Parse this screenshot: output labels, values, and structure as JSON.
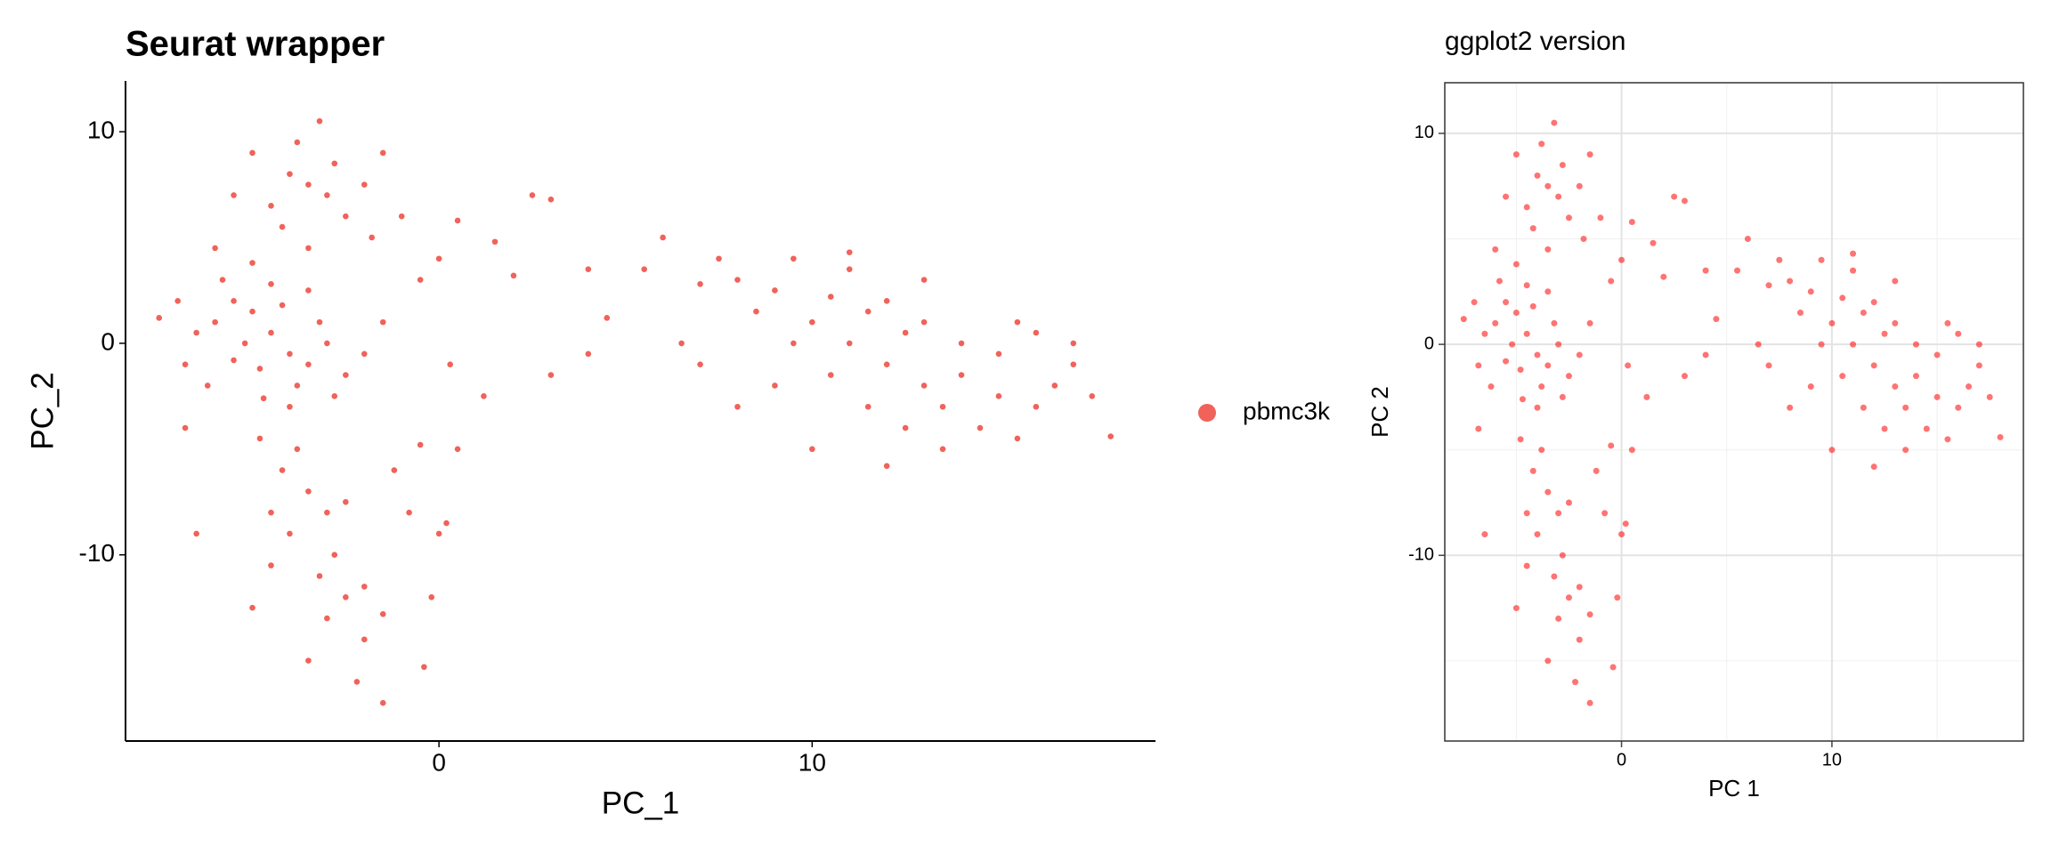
{
  "chart_data": [
    {
      "type": "scatter",
      "title": "Seurat wrapper",
      "x_label": "PC_1",
      "y_label": "PC_2",
      "xlim": [
        -8.4,
        19.2
      ],
      "ylim": [
        -18.8,
        12.4
      ],
      "xticks": [
        0,
        10
      ],
      "yticks": [
        -10,
        0,
        10
      ],
      "grid": false,
      "panel_border": false,
      "legend": "right",
      "opacity": 1,
      "x": [
        -6,
        -5.5,
        -5,
        -4.5,
        -5.2,
        -4,
        -3.5,
        -4.8,
        -6.5,
        -7,
        -5.8,
        -4.2,
        -3,
        -2.5,
        -3.8,
        -5.5,
        -6.8,
        -4.5,
        -3.2,
        -2.8,
        -7.5,
        -6.2,
        -4,
        -5,
        -6,
        -2,
        -1.5,
        -6.8,
        -3.5,
        -4.7,
        -3.5,
        -4,
        -3,
        -2.8,
        -4.5,
        -3.8,
        -2.5,
        -5,
        -3.2,
        -1.5,
        -2,
        -4.2,
        -1,
        -1.8,
        -5.5,
        -3.5,
        -3.8,
        -4.2,
        -3.5,
        -3,
        -4,
        -2.8,
        -3.2,
        -2.5,
        -3,
        -2,
        -3.5,
        -2.2,
        -1.5,
        -4.5,
        -2.5,
        -4.8,
        -2,
        -1.5,
        -5,
        -6.5,
        -4.5,
        -1.2,
        0,
        0.5,
        1.5,
        3,
        2.5,
        -0.5,
        0.3,
        0.5,
        -0.8,
        0,
        -0.2,
        1.2,
        3,
        4,
        4.5,
        4,
        2,
        -0.5,
        0.2,
        -0.4,
        5.5,
        6,
        7,
        7.5,
        8,
        8.5,
        9,
        9.5,
        10,
        10.5,
        11,
        11,
        11.5,
        12,
        12,
        12.5,
        13,
        13,
        13.5,
        14,
        14,
        14.5,
        15,
        15,
        15.5,
        16,
        16,
        16.5,
        17,
        17,
        17.5,
        18,
        12.5,
        10,
        11.5,
        13.5,
        9,
        8,
        6.5,
        7,
        10.5,
        12,
        15.5,
        13,
        11,
        9.5
      ],
      "series": [
        {
          "name": "pbmc3k",
          "color": "#f0625a",
          "values": [
            1,
            2,
            1.5,
            0.5,
            0,
            -0.5,
            -1,
            -1.2,
            0.5,
            2,
            3,
            1.8,
            0,
            -1.5,
            -2,
            -0.8,
            -1,
            2.8,
            1,
            -2.5,
            1.2,
            -2,
            -3,
            3.8,
            4.5,
            -0.5,
            1,
            -4,
            2.5,
            -2.6,
            7.5,
            8,
            7,
            8.5,
            6.5,
            9.5,
            6,
            9,
            10.5,
            9,
            7.5,
            5.5,
            6,
            5,
            7,
            4.5,
            -5,
            -6,
            -7,
            -8,
            -9,
            -10,
            -11,
            -12,
            -13,
            -14,
            -15,
            -16,
            -17,
            -8,
            -7.5,
            -4.5,
            -11.5,
            -12.8,
            -12.5,
            -9,
            -10.5,
            -6,
            4,
            5.8,
            4.8,
            6.8,
            7,
            3,
            -1,
            -5,
            -8,
            -9,
            -12,
            -2.5,
            -1.5,
            -0.5,
            1.2,
            3.5,
            3.2,
            -4.8,
            -8.5,
            -15.3,
            3.5,
            5,
            2.8,
            4,
            3,
            1.5,
            2.5,
            4,
            1,
            2.2,
            3.5,
            0,
            1.5,
            -1,
            2,
            0.5,
            -2,
            1,
            -3,
            0,
            -1.5,
            -4,
            -0.5,
            -2.5,
            1,
            -3,
            0.5,
            -2,
            -1,
            0,
            -2.5,
            -4.4,
            -4,
            -5,
            -3,
            -5,
            -2,
            -3,
            0,
            -1,
            -1.5,
            -5.8,
            -4.5,
            3,
            4.3,
            0
          ]
        }
      ]
    },
    {
      "type": "scatter",
      "title": "ggplot2 version",
      "x_label": "PC 1",
      "y_label": "PC 2",
      "xlim": [
        -8.4,
        19.1
      ],
      "ylim": [
        -18.8,
        12.4
      ],
      "xticks": [
        0,
        10
      ],
      "yticks": [
        -10,
        0,
        10
      ],
      "x_minor_ticks": [
        -5,
        5,
        15
      ],
      "y_minor_ticks": [
        -15,
        -5,
        5
      ],
      "grid": true,
      "panel_border": true,
      "opacity": 0.55,
      "color": "#ff0000",
      "x": [
        -6,
        -5.5,
        -5,
        -4.5,
        -5.2,
        -4,
        -3.5,
        -4.8,
        -6.5,
        -7,
        -5.8,
        -4.2,
        -3,
        -2.5,
        -3.8,
        -5.5,
        -6.8,
        -4.5,
        -3.2,
        -2.8,
        -7.5,
        -6.2,
        -4,
        -5,
        -6,
        -2,
        -1.5,
        -6.8,
        -3.5,
        -4.7,
        -3.5,
        -4,
        -3,
        -2.8,
        -4.5,
        -3.8,
        -2.5,
        -5,
        -3.2,
        -1.5,
        -2,
        -4.2,
        -1,
        -1.8,
        -5.5,
        -3.5,
        -3.8,
        -4.2,
        -3.5,
        -3,
        -4,
        -2.8,
        -3.2,
        -2.5,
        -3,
        -2,
        -3.5,
        -2.2,
        -1.5,
        -4.5,
        -2.5,
        -4.8,
        -2,
        -1.5,
        -5,
        -6.5,
        -4.5,
        -1.2,
        0,
        0.5,
        1.5,
        3,
        2.5,
        -0.5,
        0.3,
        0.5,
        -0.8,
        0,
        -0.2,
        1.2,
        3,
        4,
        4.5,
        4,
        2,
        -0.5,
        0.2,
        -0.4,
        5.5,
        6,
        7,
        7.5,
        8,
        8.5,
        9,
        9.5,
        10,
        10.5,
        11,
        11,
        11.5,
        12,
        12,
        12.5,
        13,
        13,
        13.5,
        14,
        14,
        14.5,
        15,
        15,
        15.5,
        16,
        16,
        16.5,
        17,
        17,
        17.5,
        18,
        12.5,
        10,
        11.5,
        13.5,
        9,
        8,
        6.5,
        7,
        10.5,
        12,
        15.5,
        13,
        11,
        9.5
      ],
      "values": [
        1,
        2,
        1.5,
        0.5,
        0,
        -0.5,
        -1,
        -1.2,
        0.5,
        2,
        3,
        1.8,
        0,
        -1.5,
        -2,
        -0.8,
        -1,
        2.8,
        1,
        -2.5,
        1.2,
        -2,
        -3,
        3.8,
        4.5,
        -0.5,
        1,
        -4,
        2.5,
        -2.6,
        7.5,
        8,
        7,
        8.5,
        6.5,
        9.5,
        6,
        9,
        10.5,
        9,
        7.5,
        5.5,
        6,
        5,
        7,
        4.5,
        -5,
        -6,
        -7,
        -8,
        -9,
        -10,
        -11,
        -12,
        -13,
        -14,
        -15,
        -16,
        -17,
        -8,
        -7.5,
        -4.5,
        -11.5,
        -12.8,
        -12.5,
        -9,
        -10.5,
        -6,
        4,
        5.8,
        4.8,
        6.8,
        7,
        3,
        -1,
        -5,
        -8,
        -9,
        -12,
        -2.5,
        -1.5,
        -0.5,
        1.2,
        3.5,
        3.2,
        -4.8,
        -8.5,
        -15.3,
        3.5,
        5,
        2.8,
        4,
        3,
        1.5,
        2.5,
        4,
        1,
        2.2,
        3.5,
        0,
        1.5,
        -1,
        2,
        0.5,
        -2,
        1,
        -3,
        0,
        -1.5,
        -4,
        -0.5,
        -2.5,
        1,
        -3,
        0.5,
        -2,
        -1,
        0,
        -2.5,
        -4.4,
        -4,
        -5,
        -3,
        -5,
        -2,
        -3,
        0,
        -1,
        -1.5,
        -5.8,
        -4.5,
        3,
        4.3,
        0
      ]
    }
  ]
}
